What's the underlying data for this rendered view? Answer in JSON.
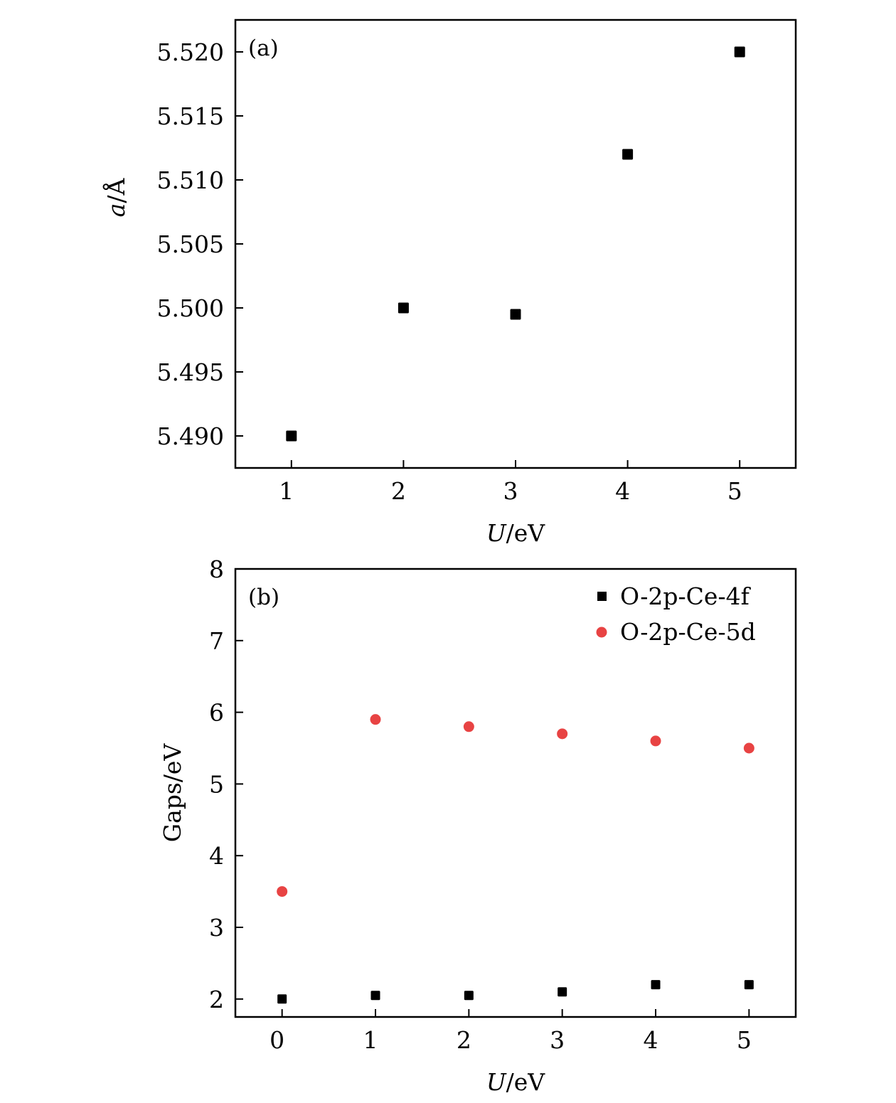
{
  "chart_data": [
    {
      "type": "scatter",
      "panel_label": "(a)",
      "xlabel_italic": "U",
      "xlabel_unit": "/eV",
      "ylabel_italic": "a",
      "ylabel_unit": "/Å",
      "xlim": [
        0.5,
        5.5
      ],
      "ylim": [
        5.4875,
        5.5225
      ],
      "xticks": [
        1,
        2,
        3,
        4,
        5
      ],
      "xtick_labels": [
        "1",
        "2",
        "3",
        "4",
        "5"
      ],
      "yticks": [
        5.49,
        5.495,
        5.5,
        5.505,
        5.51,
        5.515,
        5.52
      ],
      "ytick_labels": [
        "5.490",
        "5.495",
        "5.500",
        "5.505",
        "5.510",
        "5.515",
        "5.520"
      ],
      "grid": false,
      "series": [
        {
          "name": "a",
          "marker": "square",
          "color": "#000000",
          "x": [
            1,
            2,
            3,
            4,
            5
          ],
          "y": [
            5.49,
            5.5,
            5.4995,
            5.512,
            5.52
          ]
        }
      ]
    },
    {
      "type": "scatter",
      "panel_label": "(b)",
      "xlabel_italic": "U",
      "xlabel_unit": "/eV",
      "ylabel": "Gaps/eV",
      "xlim": [
        -0.5,
        5.5
      ],
      "ylim": [
        1.75,
        8
      ],
      "xticks": [
        0,
        1,
        2,
        3,
        4,
        5
      ],
      "xtick_labels": [
        "0",
        "1",
        "2",
        "3",
        "4",
        "5"
      ],
      "yticks": [
        2,
        3,
        4,
        5,
        6,
        7,
        8
      ],
      "ytick_labels": [
        "2",
        "3",
        "4",
        "5",
        "6",
        "7",
        "8"
      ],
      "grid": false,
      "legend_position": "top-right",
      "series": [
        {
          "name": "O-2p-Ce-4f",
          "marker": "square",
          "color": "#000000",
          "x": [
            0,
            1,
            2,
            3,
            4,
            5
          ],
          "y": [
            2.0,
            2.05,
            2.05,
            2.1,
            2.2,
            2.2
          ]
        },
        {
          "name": "O-2p-Ce-5d",
          "marker": "circle",
          "color": "#e84343",
          "x": [
            0,
            1,
            2,
            3,
            4,
            5
          ],
          "y": [
            3.5,
            5.9,
            5.8,
            5.7,
            5.6,
            5.5
          ]
        }
      ]
    }
  ]
}
